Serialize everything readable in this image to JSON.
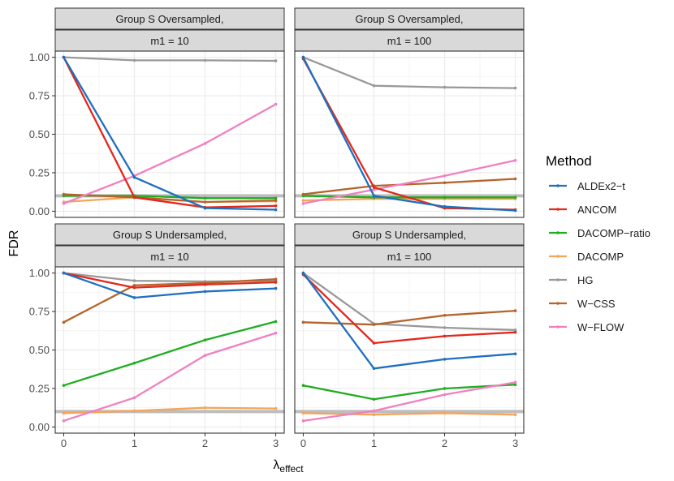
{
  "chart_data": {
    "type": "line",
    "title": "",
    "xlabel": "λ",
    "xlabel_sub": "effect",
    "ylabel": "FDR",
    "x": [
      0,
      1,
      2,
      3
    ],
    "xticks": [
      "0",
      "1",
      "2",
      "3"
    ],
    "ylim": [
      -0.04,
      1.04
    ],
    "yticks": [
      "0.00",
      "0.25",
      "0.50",
      "0.75",
      "1.00"
    ],
    "reference_line": 0.1,
    "legend": {
      "title": "Method",
      "position": "right",
      "entries": [
        "ALDEx2−t",
        "ANCOM",
        "DACOMP−ratio",
        "DACOMP",
        "HG",
        "W−CSS",
        "W−FLOW"
      ]
    },
    "colors": {
      "ALDEx2-t": "#1f6fbf",
      "ANCOM": "#e3281d",
      "DACOMP-ratio": "#1fad1f",
      "DACOMP": "#f5a45a",
      "HG": "#999999",
      "W-CSS": "#b5652b",
      "W-FLOW": "#f080c0"
    },
    "panels": [
      {
        "strip_top": "Group S Oversampled,",
        "strip_bottom": "m1 = 10",
        "series": [
          {
            "name": "HG",
            "values": [
              1.0,
              0.98,
              0.98,
              0.977
            ]
          },
          {
            "name": "DACOMP",
            "values": [
              0.06,
              0.09,
              0.06,
              0.065
            ]
          },
          {
            "name": "DACOMP-ratio",
            "values": [
              0.1,
              0.1,
              0.085,
              0.085
            ]
          },
          {
            "name": "W-CSS",
            "values": [
              0.11,
              0.09,
              0.06,
              0.07
            ]
          },
          {
            "name": "W-FLOW",
            "values": [
              0.05,
              0.23,
              0.44,
              0.695
            ]
          },
          {
            "name": "ANCOM",
            "values": [
              1.0,
              0.09,
              0.025,
              0.035
            ]
          },
          {
            "name": "ALDEx2-t",
            "values": [
              1.0,
              0.22,
              0.02,
              0.01
            ]
          }
        ]
      },
      {
        "strip_top": "Group S Oversampled,",
        "strip_bottom": "m1 = 100",
        "series": [
          {
            "name": "HG",
            "values": [
              1.0,
              0.815,
              0.805,
              0.8
            ]
          },
          {
            "name": "DACOMP",
            "values": [
              0.07,
              0.08,
              0.08,
              0.08
            ]
          },
          {
            "name": "DACOMP-ratio",
            "values": [
              0.1,
              0.09,
              0.09,
              0.09
            ]
          },
          {
            "name": "W-CSS",
            "values": [
              0.11,
              0.165,
              0.185,
              0.21
            ]
          },
          {
            "name": "W-FLOW",
            "values": [
              0.05,
              0.14,
              0.23,
              0.33
            ]
          },
          {
            "name": "ANCOM",
            "values": [
              0.99,
              0.155,
              0.02,
              0.01
            ]
          },
          {
            "name": "ALDEx2-t",
            "values": [
              1.0,
              0.1,
              0.03,
              0.005
            ]
          }
        ]
      },
      {
        "strip_top": "Group S Undersampled,",
        "strip_bottom": "m1 = 10",
        "series": [
          {
            "name": "HG",
            "values": [
              1.0,
              0.95,
              0.945,
              0.95
            ]
          },
          {
            "name": "DACOMP",
            "values": [
              0.09,
              0.105,
              0.125,
              0.12
            ]
          },
          {
            "name": "DACOMP-ratio",
            "values": [
              0.27,
              0.415,
              0.565,
              0.685
            ]
          },
          {
            "name": "W-CSS",
            "values": [
              0.68,
              0.92,
              0.935,
              0.96
            ]
          },
          {
            "name": "W-FLOW",
            "values": [
              0.04,
              0.19,
              0.465,
              0.61
            ]
          },
          {
            "name": "ANCOM",
            "values": [
              1.0,
              0.905,
              0.925,
              0.94
            ]
          },
          {
            "name": "ALDEx2-t",
            "values": [
              1.0,
              0.84,
              0.88,
              0.9
            ]
          }
        ]
      },
      {
        "strip_top": "Group S Undersampled,",
        "strip_bottom": "m1 = 100",
        "series": [
          {
            "name": "HG",
            "values": [
              1.0,
              0.67,
              0.645,
              0.63
            ]
          },
          {
            "name": "DACOMP",
            "values": [
              0.09,
              0.08,
              0.09,
              0.08
            ]
          },
          {
            "name": "DACOMP-ratio",
            "values": [
              0.27,
              0.18,
              0.25,
              0.275
            ]
          },
          {
            "name": "W-CSS",
            "values": [
              0.68,
              0.665,
              0.725,
              0.755
            ]
          },
          {
            "name": "W-FLOW",
            "values": [
              0.04,
              0.105,
              0.21,
              0.29
            ]
          },
          {
            "name": "ANCOM",
            "values": [
              0.99,
              0.545,
              0.59,
              0.615
            ]
          },
          {
            "name": "ALDEx2-t",
            "values": [
              1.0,
              0.38,
              0.44,
              0.475
            ]
          }
        ]
      }
    ]
  }
}
